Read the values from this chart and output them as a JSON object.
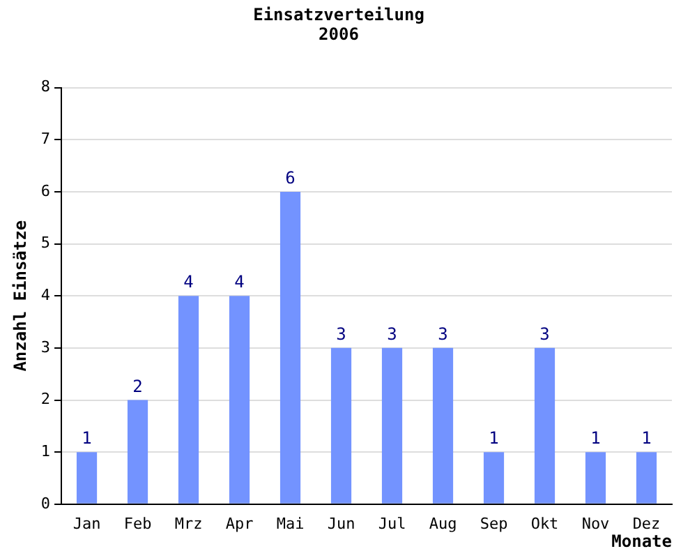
{
  "chart_data": {
    "type": "bar",
    "title": "Einsatzverteilung",
    "subtitle": "2006",
    "xlabel": "Monate",
    "ylabel": "Anzahl Einsätze",
    "categories": [
      "Jan",
      "Feb",
      "Mrz",
      "Apr",
      "Mai",
      "Jun",
      "Jul",
      "Aug",
      "Sep",
      "Okt",
      "Nov",
      "Dez"
    ],
    "values": [
      1,
      2,
      4,
      4,
      6,
      3,
      3,
      3,
      1,
      3,
      1,
      1
    ],
    "color": "#7393ff",
    "ylim": [
      0,
      8
    ],
    "yticks": [
      0,
      1,
      2,
      3,
      4,
      5,
      6,
      7,
      8
    ],
    "grid": "y",
    "data_labels": true,
    "legend": false
  }
}
